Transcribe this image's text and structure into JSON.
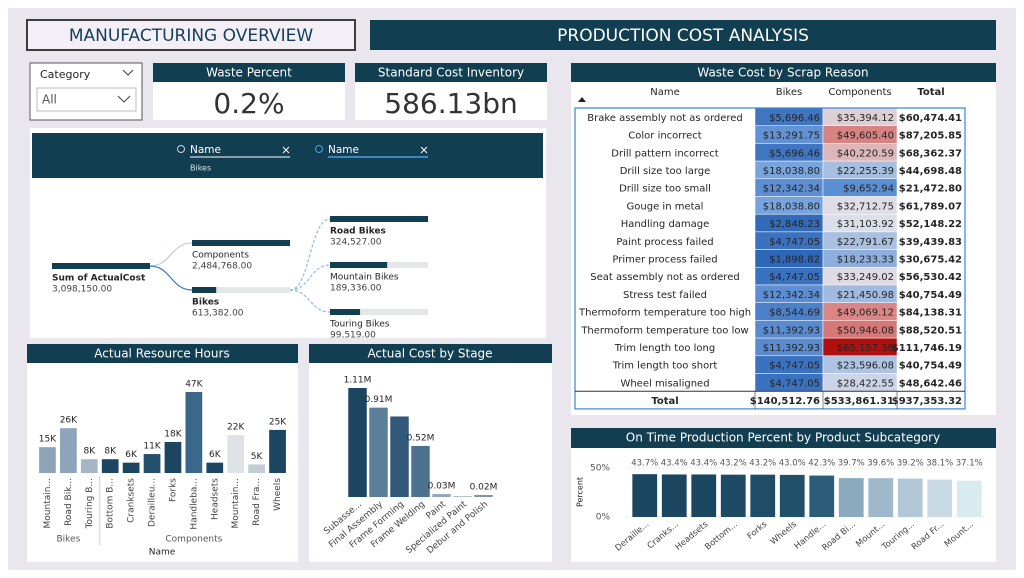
{
  "header": {
    "title": "MANUFACTURING OVERVIEW",
    "subtitle": "PRODUCTION COST ANALYSIS"
  },
  "slicer": {
    "label": "Category",
    "value": "All"
  },
  "cards": [
    {
      "label": "Waste Percent",
      "value": "0.2%"
    },
    {
      "label": "Standard Cost Inventory",
      "value": "586.13bn"
    }
  ],
  "decomposition": {
    "filters": [
      {
        "label": "Name",
        "value": "Bikes"
      },
      {
        "label": "Name"
      }
    ],
    "root": {
      "name": "Sum of ActualCost",
      "value": 3098150,
      "value_label": "3,098,150.00"
    },
    "level1": [
      {
        "name": "Components",
        "value": 2484768,
        "value_label": "2,484,768.00"
      },
      {
        "name": "Bikes",
        "value": 613382,
        "value_label": "613,382.00"
      }
    ],
    "level2": [
      {
        "name": "Road Bikes",
        "value": 324527,
        "value_label": "324,527.00"
      },
      {
        "name": "Mountain Bikes",
        "value": 189336,
        "value_label": "189,336.00"
      },
      {
        "name": "Touring Bikes",
        "value": 99519,
        "value_label": "99,519.00"
      }
    ]
  },
  "table": {
    "title": "Waste Cost by Scrap Reason",
    "columns": [
      "Name",
      "Bikes",
      "Components",
      "Total"
    ],
    "rows": [
      [
        "Brake assembly not as ordered",
        "$5,696.46",
        "$35,394.12",
        "$60,474.41"
      ],
      [
        "Color incorrect",
        "$13,291.75",
        "$49,605.40",
        "$87,205.85"
      ],
      [
        "Drill pattern incorrect",
        "$5,696.46",
        "$40,220.59",
        "$68,362.37"
      ],
      [
        "Drill size too large",
        "$18,038.80",
        "$22,255.39",
        "$44,698.48"
      ],
      [
        "Drill size too small",
        "$12,342.34",
        "$9,652.94",
        "$21,472.80"
      ],
      [
        "Gouge in metal",
        "$18,038.80",
        "$32,712.75",
        "$61,789.07"
      ],
      [
        "Handling damage",
        "$2,848.23",
        "$31,103.92",
        "$52,148.22"
      ],
      [
        "Paint process failed",
        "$4,747.05",
        "$22,791.67",
        "$39,439.83"
      ],
      [
        "Primer process failed",
        "$1,898.82",
        "$18,233.33",
        "$30,675.42"
      ],
      [
        "Seat assembly not as ordered",
        "$4,747.05",
        "$33,249.02",
        "$56,530.42"
      ],
      [
        "Stress test failed",
        "$12,342.34",
        "$21,450.98",
        "$40,754.49"
      ],
      [
        "Thermoform temperature too high",
        "$8,544.69",
        "$49,069.12",
        "$84,138.31"
      ],
      [
        "Thermoform temperature too low",
        "$11,392.93",
        "$50,946.08",
        "$88,520.51"
      ],
      [
        "Trim length too long",
        "$11,392.93",
        "$65,157.36",
        "$111,746.19"
      ],
      [
        "Trim length too short",
        "$4,747.05",
        "$23,596.08",
        "$40,754.49"
      ],
      [
        "Wheel misaligned",
        "$4,747.05",
        "$28,422.55",
        "$48,642.46"
      ]
    ],
    "total": [
      "Total",
      "$140,512.76",
      "$533,861.31",
      "$937,353.32"
    ]
  },
  "chart_data": [
    {
      "type": "bar",
      "title": "Actual Resource Hours",
      "x_label": "Name",
      "groups": [
        {
          "name": "Bikes",
          "categories": [
            "Mountain...",
            "Road Bik...",
            "Touring B..."
          ],
          "values": [
            15000,
            26000,
            8000
          ],
          "value_labels": [
            "15K",
            "26K",
            "8K"
          ],
          "colors": [
            "#8ea5b9",
            "#8ea5b9",
            "#a5b7c6"
          ]
        },
        {
          "name": "Components",
          "categories": [
            "Bottom B...",
            "Cranksets",
            "Derailleu...",
            "Forks",
            "Handleba...",
            "Headsets",
            "Mountain...",
            "Road Fra...",
            "Wheels"
          ],
          "values": [
            8000,
            6000,
            11000,
            18000,
            47000,
            6000,
            22000,
            5000,
            25000
          ],
          "value_labels": [
            "8K",
            "6K",
            "11K",
            "18K",
            "47K",
            "6K",
            "22K",
            "5K",
            "25K"
          ],
          "colors": [
            "#1c4561",
            "#1c4561",
            "#24506e",
            "#1c4561",
            "#3b6888",
            "#1c4561",
            "#dfe2e6",
            "#c3ccd5",
            "#1c4561"
          ]
        }
      ]
    },
    {
      "type": "bar",
      "title": "Actual Cost by Stage",
      "categories": [
        "Subasse...",
        "Final Assembly",
        "Frame Forming",
        "Frame Welding",
        "Paint",
        "Specialized Paint",
        "Debur and Polish"
      ],
      "values": [
        1110000,
        910000,
        820000,
        520000,
        30000,
        10000,
        20000
      ],
      "value_labels": [
        "1.11M",
        "0.91M",
        null,
        "0.52M",
        "0.03M",
        null,
        "0.02M"
      ],
      "colors": [
        "#1c4561",
        "#5b7f99",
        "#32597a",
        "#4d7290",
        "#90a7b8",
        "#b4c1cc",
        "#7b93a6"
      ]
    },
    {
      "type": "bar",
      "title": "On Time Production Percent by Product Subcategory",
      "y_label": "Percent",
      "categories": [
        "Deraille...",
        "Cranks...",
        "Headsets",
        "Bottom...",
        "Forks",
        "Wheels",
        "Handle...",
        "Road Bi...",
        "Mount...",
        "Touring...",
        "Road Fr...",
        "Mount..."
      ],
      "values": [
        43.7,
        43.4,
        43.4,
        43.2,
        43.2,
        43.0,
        42.3,
        39.7,
        39.6,
        39.2,
        38.1,
        37.1
      ],
      "value_labels": [
        "43.7%",
        "43.4%",
        "43.4%",
        "43.2%",
        "43.2%",
        "43.0%",
        "42.3%",
        "39.7%",
        "39.6%",
        "39.2%",
        "38.1%",
        "37.1%"
      ],
      "colors": [
        "#1b4660",
        "#1b4660",
        "#1b4660",
        "#1d4a64",
        "#1f4c67",
        "#21506b",
        "#2c5d78",
        "#8caabd",
        "#a0b9ca",
        "#b2c8d6",
        "#c8dbe4",
        "#d8ebee"
      ],
      "ylim": [
        0,
        50
      ],
      "yticks": [
        {
          "value": 0,
          "label": "0%"
        },
        {
          "value": 50,
          "label": "50%"
        }
      ]
    }
  ]
}
